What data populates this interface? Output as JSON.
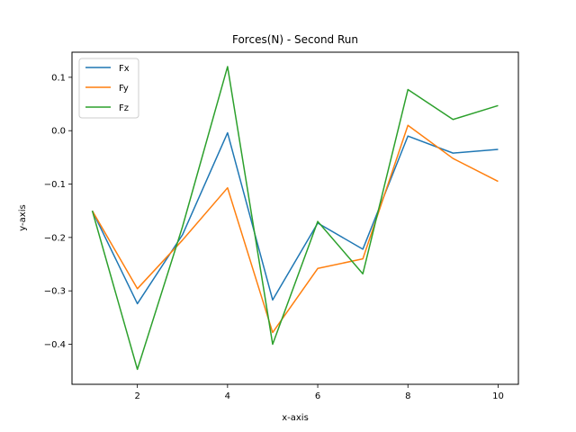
{
  "chart_data": {
    "type": "line",
    "title": "Forces(N) - Second Run",
    "xlabel": "x-axis",
    "ylabel": "y-axis",
    "x": [
      1,
      2,
      3,
      4,
      5,
      6,
      7,
      8,
      9,
      10
    ],
    "xlim": [
      0.55,
      10.45
    ],
    "ylim": [
      -0.475,
      0.147
    ],
    "xticks": [
      2,
      4,
      6,
      8,
      10
    ],
    "yticks": [
      -0.4,
      -0.3,
      -0.2,
      -0.1,
      0.0,
      0.1
    ],
    "ytick_labels": [
      "−0.4",
      "−0.3",
      "−0.2",
      "−0.1",
      "0.0",
      "0.1"
    ],
    "grid": false,
    "legend_position": "top-left",
    "series": [
      {
        "name": "Fx",
        "color": "#1f77b4",
        "values": [
          -0.15,
          -0.324,
          -0.195,
          -0.004,
          -0.317,
          -0.173,
          -0.222,
          -0.01,
          -0.042,
          -0.035
        ]
      },
      {
        "name": "Fy",
        "color": "#ff7f0e",
        "values": [
          -0.15,
          -0.296,
          -0.205,
          -0.107,
          -0.378,
          -0.258,
          -0.24,
          0.01,
          -0.052,
          -0.095
        ]
      },
      {
        "name": "Fz",
        "color": "#2ca02c",
        "values": [
          -0.15,
          -0.447,
          -0.18,
          0.12,
          -0.4,
          -0.17,
          -0.268,
          0.077,
          0.021,
          0.047
        ]
      }
    ]
  }
}
